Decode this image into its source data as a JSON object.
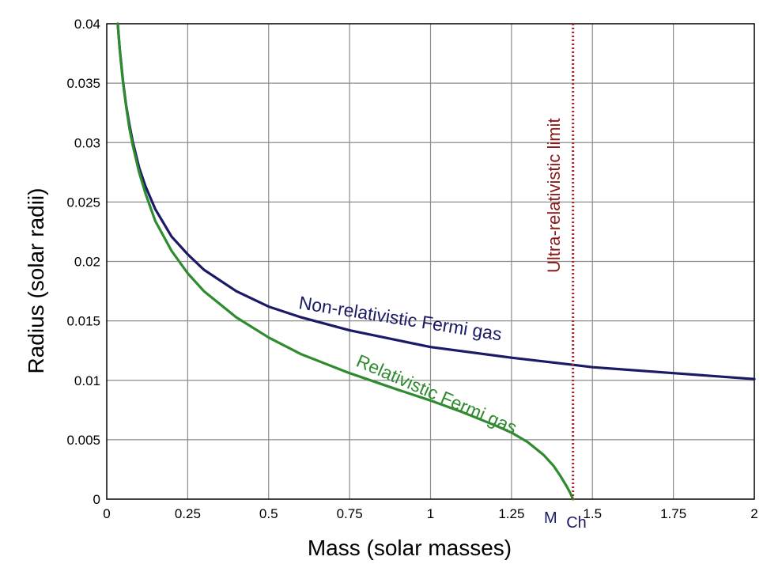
{
  "chart_data": {
    "type": "line",
    "xlabel": "Mass (solar masses)",
    "ylabel": "Radius (solar radii)",
    "xlim": [
      0,
      2
    ],
    "ylim": [
      0,
      0.04
    ],
    "x_ticks": [
      "0",
      "0.25",
      "0.5",
      "0.75",
      "1",
      "1.25",
      "1.5",
      "1.75",
      "2"
    ],
    "y_ticks": [
      "0",
      "0.005",
      "0.01",
      "0.015",
      "0.02",
      "0.025",
      "0.03",
      "0.035",
      "0.04"
    ],
    "grid": true,
    "series": [
      {
        "name": "Non-relativistic Fermi gas",
        "color": "#1a1a66",
        "x": [
          0.034,
          0.04,
          0.05,
          0.06,
          0.07,
          0.08,
          0.1,
          0.12,
          0.15,
          0.2,
          0.25,
          0.3,
          0.4,
          0.5,
          0.6,
          0.75,
          1.0,
          1.25,
          1.44,
          1.5,
          1.75,
          2.0
        ],
        "y": [
          0.04,
          0.0379,
          0.0352,
          0.0331,
          0.0315,
          0.0301,
          0.0279,
          0.0263,
          0.0244,
          0.0221,
          0.0206,
          0.0193,
          0.0175,
          0.0162,
          0.0153,
          0.0142,
          0.0128,
          0.0119,
          0.0113,
          0.0111,
          0.0106,
          0.0101
        ]
      },
      {
        "name": "Relativistic Fermi gas",
        "color": "#2e8b2e",
        "x": [
          0.034,
          0.04,
          0.05,
          0.06,
          0.07,
          0.08,
          0.1,
          0.12,
          0.15,
          0.2,
          0.25,
          0.3,
          0.4,
          0.5,
          0.6,
          0.75,
          0.9,
          1.0,
          1.1,
          1.2,
          1.25,
          1.3,
          1.35,
          1.38,
          1.4,
          1.42,
          1.43,
          1.44
        ],
        "y": [
          0.04,
          0.0379,
          0.0351,
          0.033,
          0.0312,
          0.0298,
          0.0275,
          0.0257,
          0.0234,
          0.0209,
          0.019,
          0.0175,
          0.0153,
          0.0136,
          0.0122,
          0.0106,
          0.0092,
          0.0083,
          0.0073,
          0.0062,
          0.0056,
          0.0048,
          0.0037,
          0.0028,
          0.002,
          0.0011,
          0.0006,
          0.0
        ]
      }
    ],
    "vertical_line": {
      "x": 1.44,
      "label": "Ultra-relativistic limit",
      "color": "#b22222",
      "style": "dotted"
    },
    "annotations": {
      "nonrel_label": "Non-relativistic Fermi gas",
      "rel_label": "Relativistic Fermi gas",
      "mch_main": "M",
      "mch_sub": "Ch"
    }
  }
}
